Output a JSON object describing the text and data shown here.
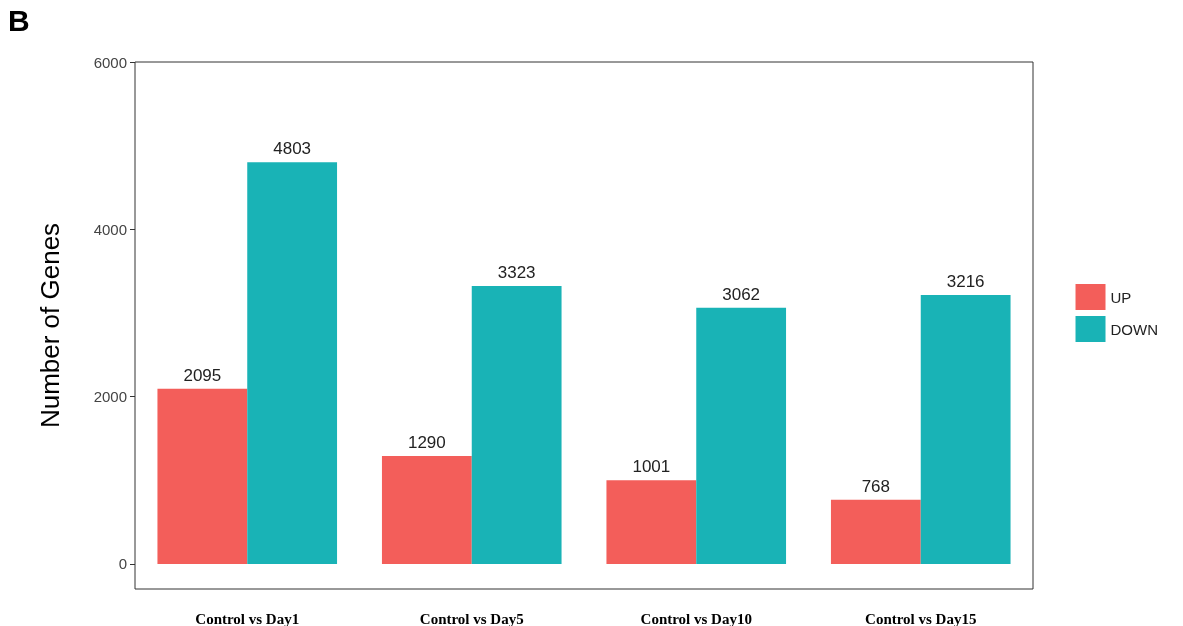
{
  "chart_data": {
    "type": "bar",
    "ylabel": "Number of Genes",
    "annotations": [
      "B"
    ],
    "categories": [
      "Control vs Day1",
      "Control vs Day5",
      "Control vs Day10",
      "Control vs Day15"
    ],
    "series": [
      {
        "name": "UP",
        "color": "#f35e5a",
        "values": [
          2095,
          1290,
          1001,
          768
        ]
      },
      {
        "name": "DOWN",
        "color": "#19b3b6",
        "values": [
          4803,
          3323,
          3062,
          3216
        ]
      }
    ],
    "ylim": [
      -300,
      6000
    ],
    "yticks": [
      0,
      2000,
      4000,
      6000
    ],
    "grid": false,
    "legend": "right",
    "data_labels": true
  }
}
